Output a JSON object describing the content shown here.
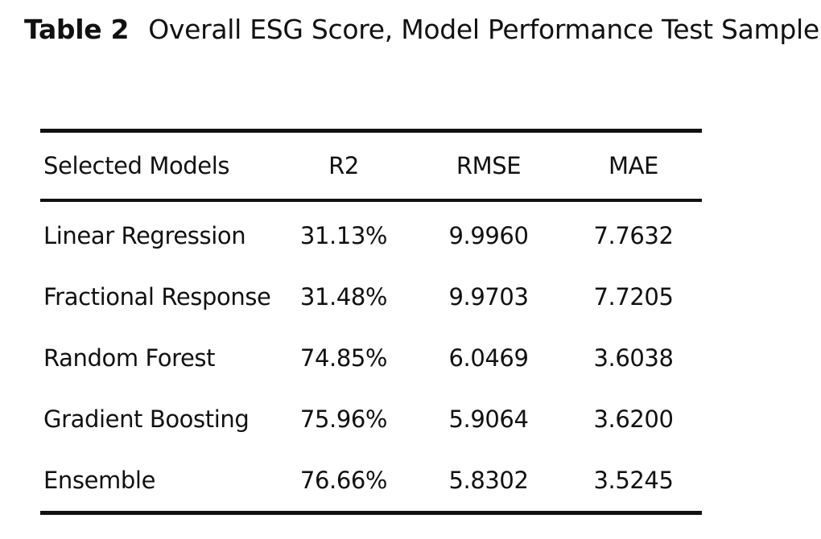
{
  "caption": {
    "label": "Table 2",
    "title": "Overall ESG Score, Model Performance Test Sample."
  },
  "table": {
    "headers": [
      "Selected Models",
      "R2",
      "RMSE",
      "MAE"
    ],
    "rows": [
      [
        "Linear Regression",
        "31.13%",
        "9.9960",
        "7.7632"
      ],
      [
        "Fractional Response",
        "31.48%",
        "9.9703",
        "7.7205"
      ],
      [
        "Random Forest",
        "74.85%",
        "6.0469",
        "3.6038"
      ],
      [
        "Gradient Boosting",
        "75.96%",
        "5.9064",
        "3.6200"
      ],
      [
        "Ensemble",
        "76.66%",
        "5.8302",
        "3.5245"
      ]
    ]
  }
}
